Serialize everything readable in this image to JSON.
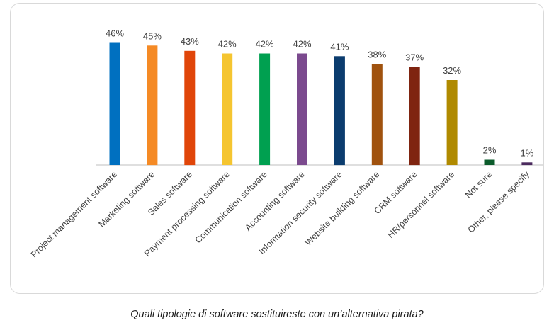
{
  "chart_data": {
    "type": "bar",
    "categories": [
      "Project management software",
      "Marketing software",
      "Sales software",
      "Payment processing software",
      "Communication software",
      "Accounting software",
      "Information security software",
      "Website building software",
      "CRM software",
      "HR/personnel software",
      "Not sure",
      "Other, please specify"
    ],
    "values": [
      46,
      45,
      43,
      42,
      42,
      42,
      41,
      38,
      37,
      32,
      2,
      1
    ],
    "data_labels": [
      "46%",
      "45%",
      "43%",
      "42%",
      "42%",
      "42%",
      "41%",
      "38%",
      "37%",
      "32%",
      "2%",
      "1%"
    ],
    "colors": [
      "#0070C0",
      "#F58A25",
      "#E04509",
      "#F5C530",
      "#00A050",
      "#7B4A8E",
      "#0B3C6E",
      "#A0520E",
      "#7F2410",
      "#B08A00",
      "#0B5B2B",
      "#4B2A5E"
    ],
    "ylim": [
      0,
      50
    ],
    "grid": false,
    "legend": "none"
  },
  "caption": "Quali tipologie di software sostituireste con un’alternativa pirata?"
}
